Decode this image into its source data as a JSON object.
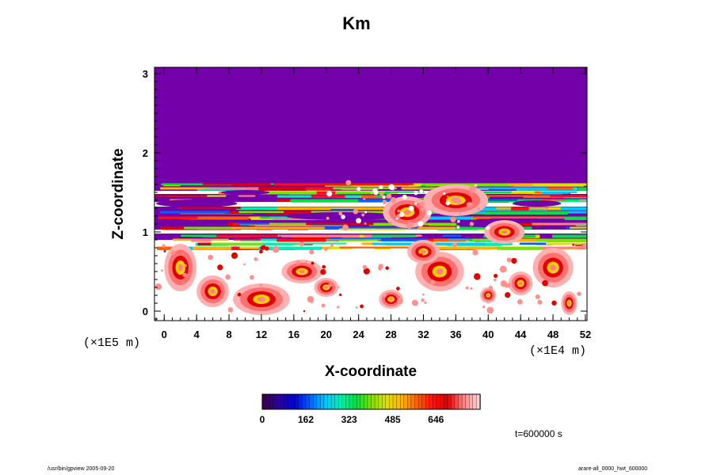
{
  "chart_data": {
    "type": "heatmap",
    "title": "Km",
    "xlabel": "X-coordinate",
    "ylabel": "Z-coordinate",
    "x_scale_label": "(×1E4 m)",
    "y_scale_label": "(×1E5 m)",
    "xlim": [
      -1.2,
      52.2
    ],
    "ylim": [
      -0.12,
      3.08
    ],
    "x_ticks": [
      0,
      4,
      8,
      12,
      16,
      20,
      24,
      28,
      32,
      36,
      40,
      44,
      48,
      52
    ],
    "y_ticks": [
      0,
      1,
      2,
      3
    ],
    "colorbar": {
      "ticks": [
        0,
        162,
        323,
        485,
        646
      ],
      "range": [
        0,
        810
      ],
      "colors": [
        "#3a0050",
        "#2a00a0",
        "#0000d8",
        "#0060ff",
        "#00c8ff",
        "#00f0b0",
        "#00e040",
        "#80e000",
        "#e0e000",
        "#ffb000",
        "#ff6000",
        "#ff1010",
        "#e00000",
        "#ff8080",
        "#ffd0d0"
      ]
    },
    "background_color": "#7300a8",
    "time_label": "t=600000 s"
  },
  "footer": {
    "left": "/usr/bin/gpview 2005-09-20",
    "right": "arare-all_0000_hwt_600000"
  }
}
